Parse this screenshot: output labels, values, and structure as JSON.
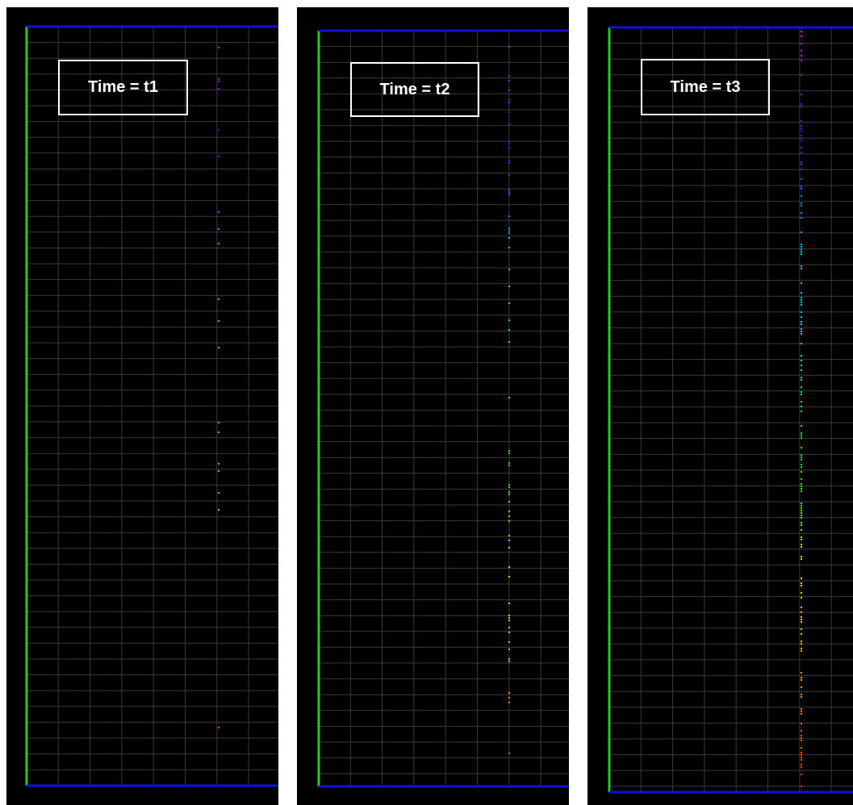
{
  "panels": [
    {
      "label": "Time = t1",
      "pattern": "sparse"
    },
    {
      "label": "Time = t2",
      "pattern": "medium"
    },
    {
      "label": "Time = t3",
      "pattern": "dense"
    }
  ],
  "colors": {
    "background": "#000000",
    "grid": "#3a3a3a",
    "left_wall": "#22cc22",
    "top_bottom_walls": "#1111dd",
    "label_border": "#ffffff",
    "particle_gradient_top_to_bottom": [
      "#ff00ff",
      "#2222ff",
      "#00bbff",
      "#00dddd",
      "#22dd22",
      "#dddd00",
      "#ff9900",
      "#ff2200"
    ]
  }
}
